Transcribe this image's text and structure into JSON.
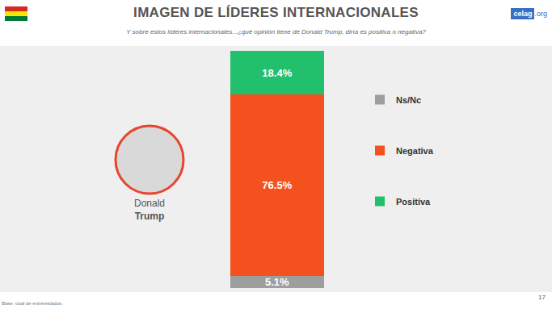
{
  "header": {
    "title": "IMAGEN DE LÍDERES INTERNACIONALES",
    "subtitle": "Y sobre estos líderes internacionales...¿qué opinión tiene de Donald Trump, diría es positiva o negativa?",
    "logo": "celag.org",
    "footer": "Base: total de entrevistados.",
    "page": "17"
  },
  "chart_data": {
    "type": "bar",
    "stacked": true,
    "categories": [
      "Donald Trump"
    ],
    "series": [
      {
        "name": "Ns/Nc",
        "color": "#9e9e9e",
        "values": [
          5.1
        ],
        "value_labels": [
          "5.1%"
        ]
      },
      {
        "name": "Negativa",
        "color": "#f4511e",
        "values": [
          76.5
        ],
        "value_labels": [
          "76.5%"
        ]
      },
      {
        "name": "Positiva",
        "color": "#22c06c",
        "values": [
          18.4
        ],
        "value_labels": [
          "18.4%"
        ]
      }
    ],
    "ylim": [
      0,
      100
    ],
    "data_labels": true,
    "tick_labels": false,
    "legend": "right"
  }
}
